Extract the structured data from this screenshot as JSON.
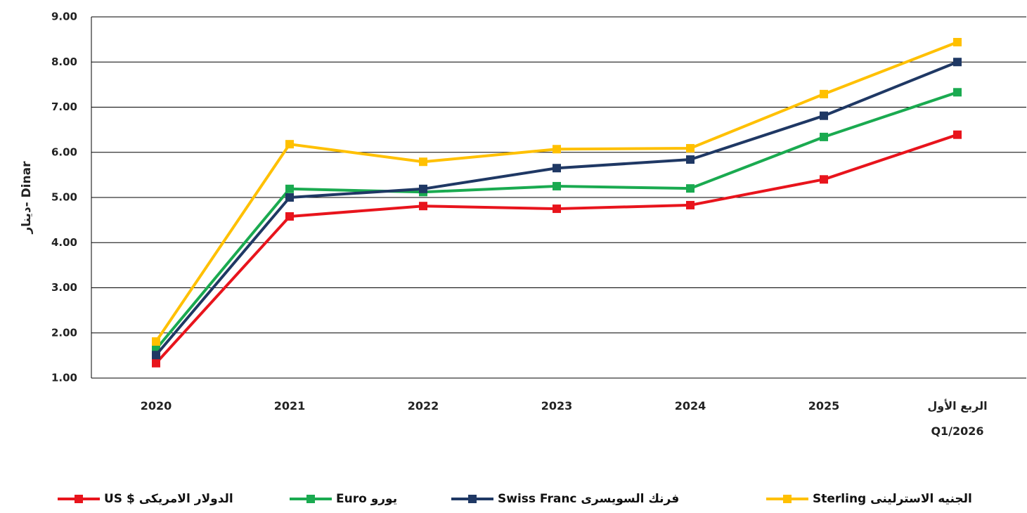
{
  "chart_data": {
    "type": "line",
    "y_label": "دينار- Dinar",
    "categories": [
      "2020",
      "2021",
      "2022",
      "2023",
      "2024",
      "2025",
      "الربع الأول\nQ1/2026"
    ],
    "series": [
      {
        "name": "الدولار الامريكى $ US",
        "color": "#e8141c",
        "values": [
          1.33,
          4.58,
          4.81,
          4.75,
          4.83,
          5.4,
          6.39
        ]
      },
      {
        "name": "يورو Euro",
        "color": "#1aaa50",
        "values": [
          1.64,
          5.19,
          5.12,
          5.25,
          5.2,
          6.34,
          7.33
        ]
      },
      {
        "name": "فرنك السويسرى Swiss Franc",
        "color": "#1f3864",
        "values": [
          1.51,
          5.0,
          5.19,
          5.65,
          5.84,
          6.81,
          8.0
        ]
      },
      {
        "name": "الجنيه الاسترلينى Sterling",
        "color": "#ffc000",
        "values": [
          1.81,
          6.18,
          5.79,
          6.07,
          6.09,
          7.29,
          8.44
        ]
      }
    ],
    "ylim": [
      1,
      9
    ],
    "yticks": [
      {
        "value": 1,
        "label": "1.00"
      },
      {
        "value": 2,
        "label": "2.00"
      },
      {
        "value": 3,
        "label": "3.00"
      },
      {
        "value": 4,
        "label": "4.00"
      },
      {
        "value": 5,
        "label": "5.00"
      },
      {
        "value": 6,
        "label": "6.00"
      },
      {
        "value": 7,
        "label": "7.00"
      },
      {
        "value": 8,
        "label": "8.00"
      },
      {
        "value": 9,
        "label": "9.00"
      }
    ],
    "grid": true
  }
}
